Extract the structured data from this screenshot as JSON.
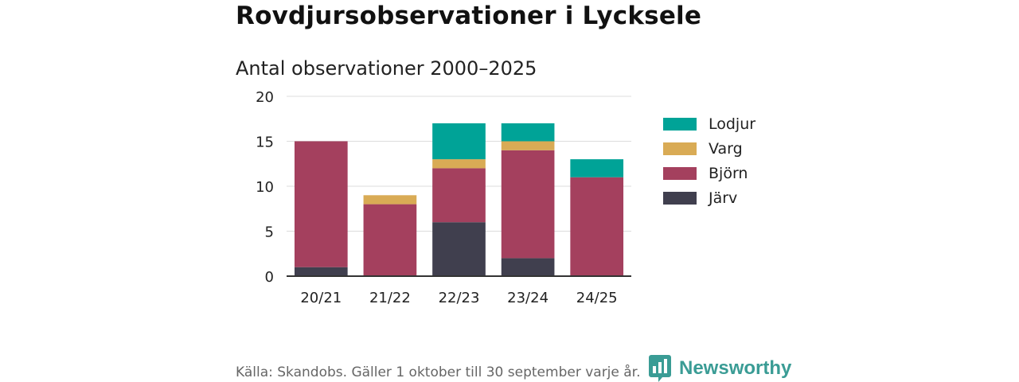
{
  "title": "Rovdjursobservationer i Lycksele",
  "subtitle": "Antal observationer 2000–2025",
  "footer": "Källa: Skandobs. Gäller 1 oktober till 30 september varje år.",
  "brand": "Newsworthy",
  "chart_data": {
    "type": "bar",
    "stacked": true,
    "categories": [
      "20/21",
      "21/22",
      "22/23",
      "23/24",
      "24/25"
    ],
    "series": [
      {
        "name": "Järv",
        "color": "#403f4e",
        "values": [
          1,
          0,
          6,
          2,
          0
        ]
      },
      {
        "name": "Björn",
        "color": "#a4405e",
        "values": [
          14,
          8,
          6,
          12,
          11
        ]
      },
      {
        "name": "Varg",
        "color": "#d9ab55",
        "values": [
          0,
          1,
          1,
          1,
          0
        ]
      },
      {
        "name": "Lodjur",
        "color": "#00a397",
        "values": [
          0,
          0,
          4,
          2,
          2
        ]
      }
    ],
    "ylim": [
      0,
      20
    ],
    "yticks": [
      0,
      5,
      10,
      15,
      20
    ],
    "legend_order": [
      "Lodjur",
      "Varg",
      "Björn",
      "Järv"
    ],
    "legend_position": "right",
    "grid": true
  }
}
